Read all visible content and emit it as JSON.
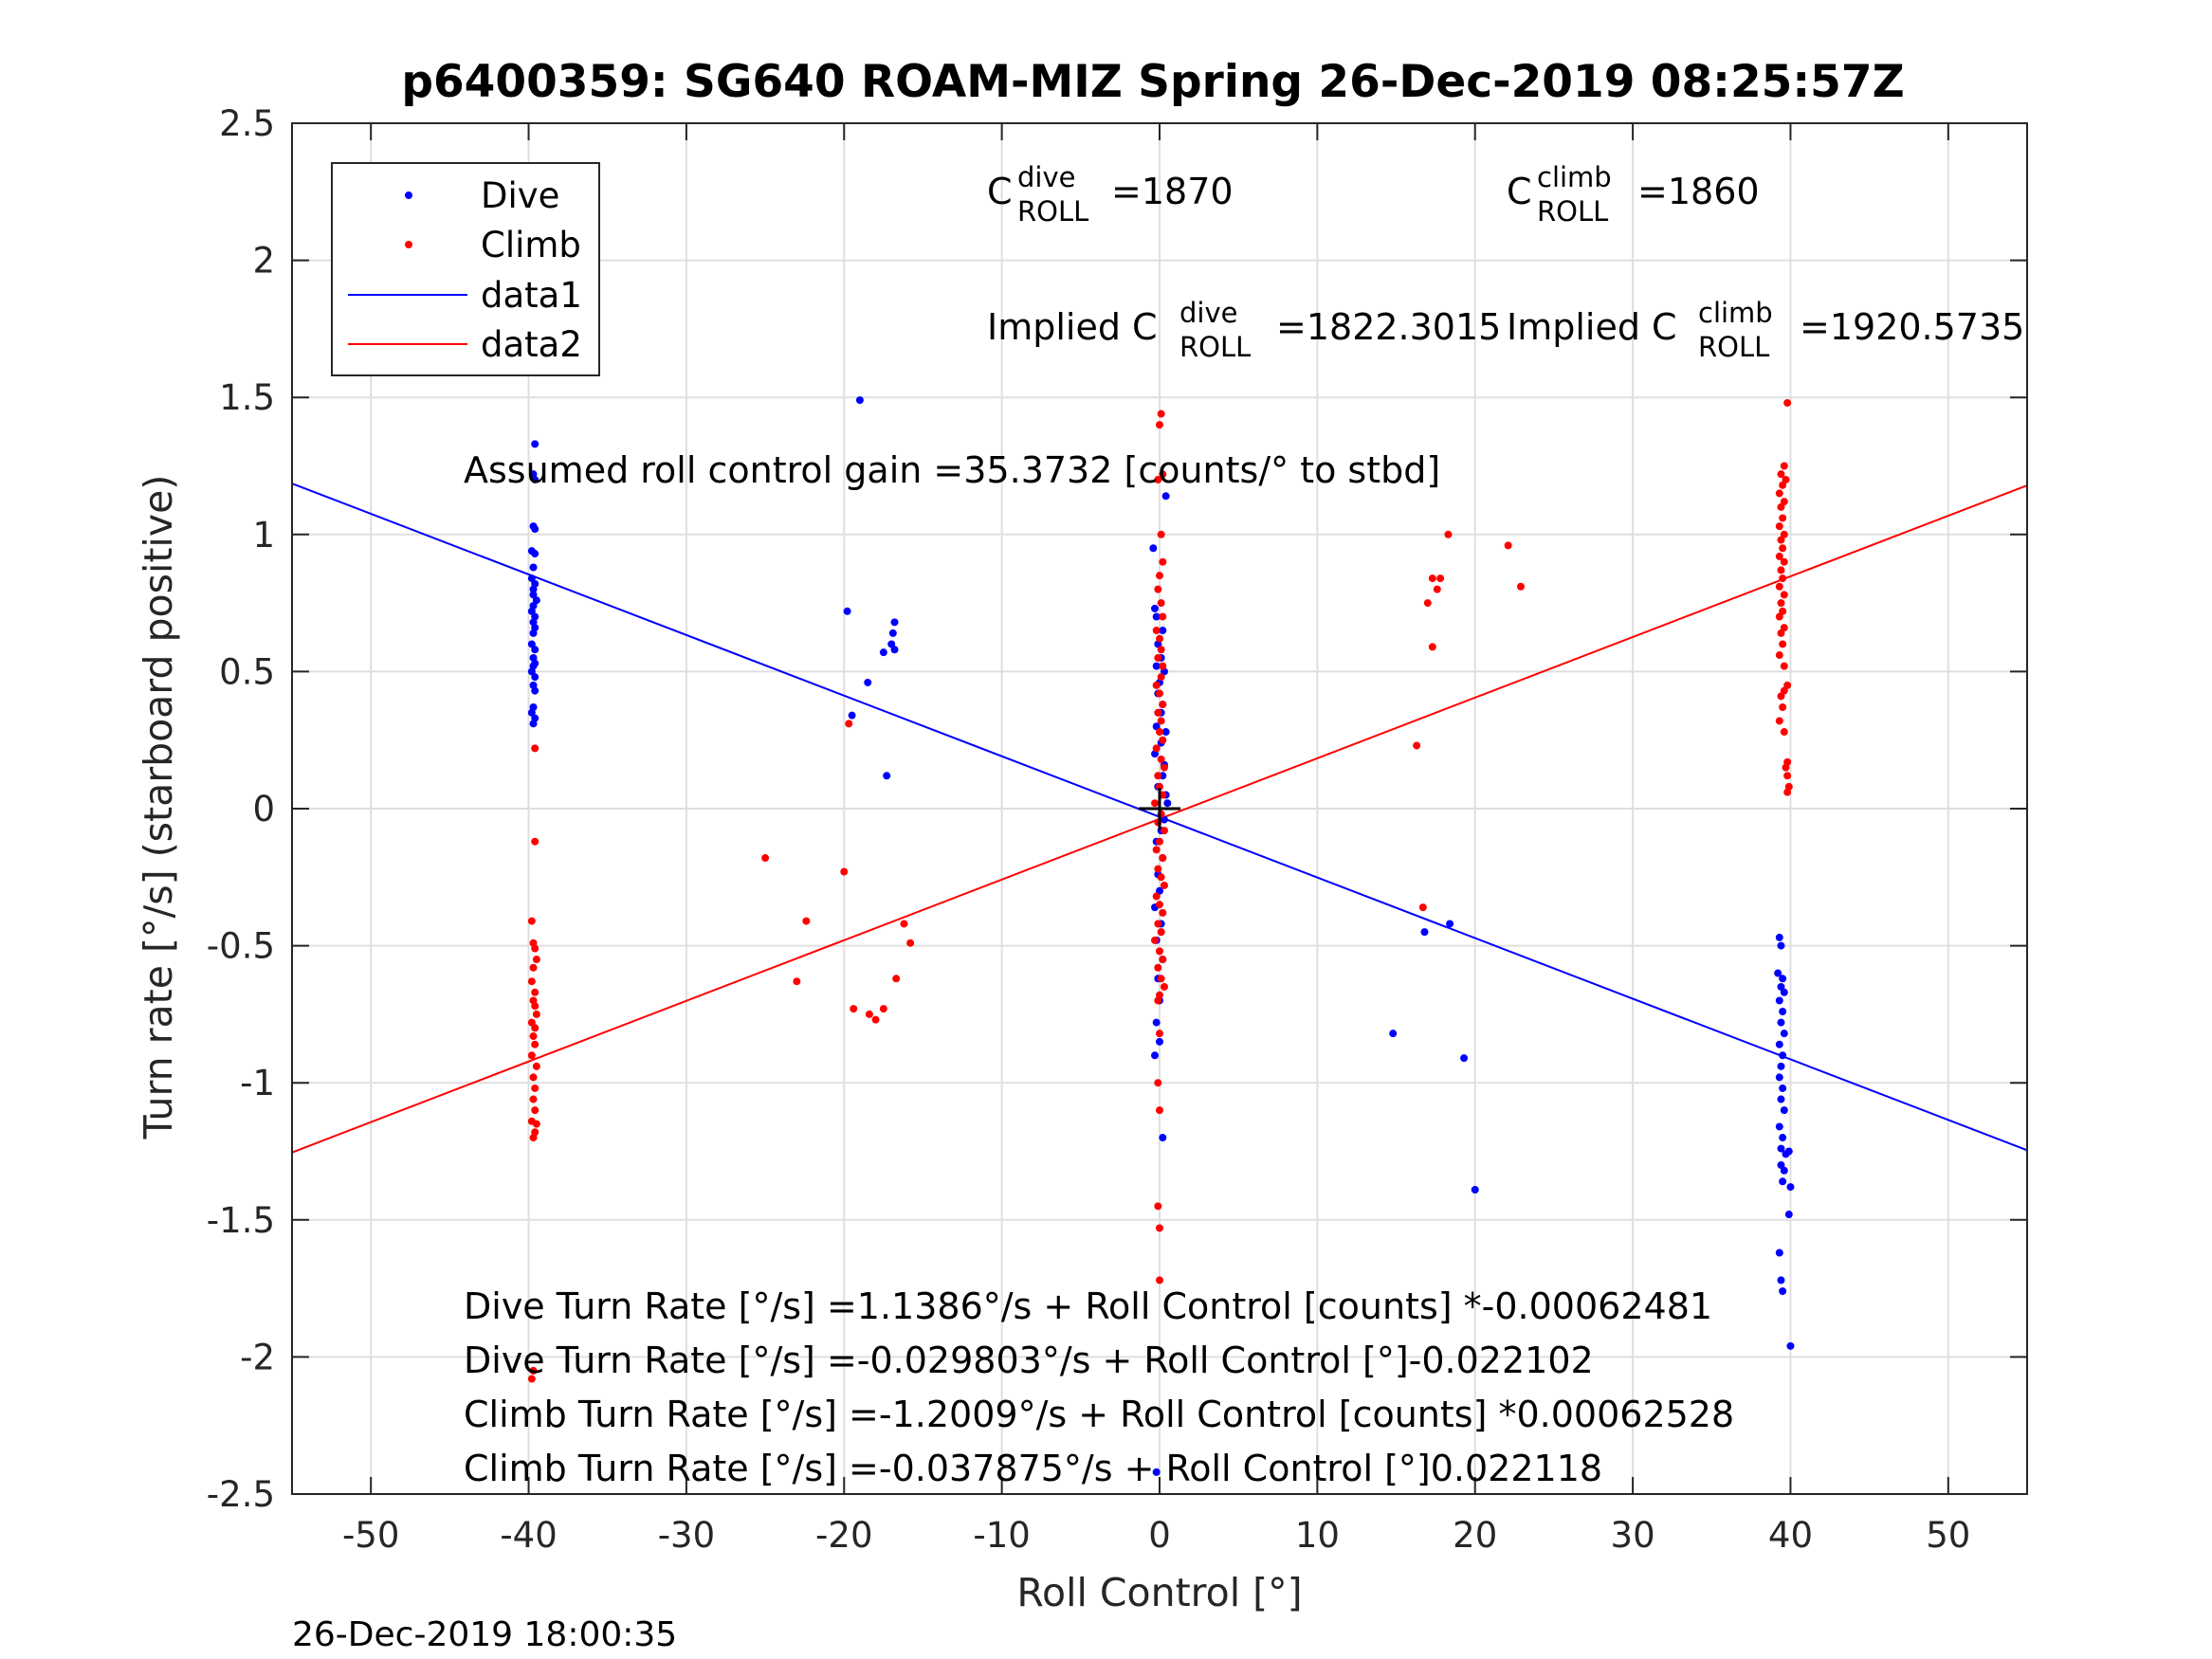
{
  "chart_data": {
    "type": "scatter",
    "title": "p6400359: SG640 ROAM-MIZ Spring 26-Dec-2019 08:25:57Z",
    "xlabel": "Roll Control [°]",
    "ylabel": "Turn rate [°/s] (starboard positive)",
    "xlim": [
      -55,
      55
    ],
    "ylim": [
      -2.5,
      2.5
    ],
    "grid": true,
    "x_ticks": [
      -50,
      -40,
      -30,
      -20,
      -10,
      0,
      10,
      20,
      30,
      40,
      50
    ],
    "x_tick_labels": [
      "-50",
      "-40",
      "-30",
      "-20",
      "-10",
      "0",
      "10",
      "20",
      "30",
      "40",
      "50"
    ],
    "y_ticks": [
      -2.5,
      -2,
      -1.5,
      -1,
      -0.5,
      0,
      0.5,
      1,
      1.5,
      2,
      2.5
    ],
    "y_tick_labels": [
      "-2.5",
      "-2",
      "-1.5",
      "-1",
      "-0.5",
      "0",
      "0.5",
      "1",
      "1.5",
      "2",
      "2.5"
    ],
    "legend": {
      "placement": "top-left",
      "entries": [
        {
          "label": "Dive",
          "kind": "marker",
          "color": "#0000ff"
        },
        {
          "label": "Climb",
          "kind": "marker",
          "color": "#ff0000"
        },
        {
          "label": "data1",
          "kind": "line",
          "color": "#0000ff"
        },
        {
          "label": "data2",
          "kind": "line",
          "color": "#ff0000"
        }
      ]
    },
    "series": [
      {
        "name": "Dive",
        "kind": "scatter",
        "color": "#0000ff",
        "points": [
          [
            -39.7,
            1.6
          ],
          [
            -39.6,
            1.33
          ],
          [
            -39.7,
            1.22
          ],
          [
            -39.6,
            1.2
          ],
          [
            -39.7,
            1.03
          ],
          [
            -39.6,
            1.02
          ],
          [
            -39.8,
            0.94
          ],
          [
            -39.6,
            0.93
          ],
          [
            -39.7,
            0.88
          ],
          [
            -39.8,
            0.84
          ],
          [
            -39.6,
            0.82
          ],
          [
            -39.7,
            0.8
          ],
          [
            -39.7,
            0.78
          ],
          [
            -39.5,
            0.76
          ],
          [
            -39.7,
            0.74
          ],
          [
            -39.8,
            0.72
          ],
          [
            -39.6,
            0.7
          ],
          [
            -39.7,
            0.68
          ],
          [
            -39.6,
            0.66
          ],
          [
            -39.7,
            0.64
          ],
          [
            -39.8,
            0.6
          ],
          [
            -39.6,
            0.58
          ],
          [
            -39.7,
            0.55
          ],
          [
            -39.6,
            0.53
          ],
          [
            -39.7,
            0.52
          ],
          [
            -39.8,
            0.5
          ],
          [
            -39.6,
            0.48
          ],
          [
            -39.7,
            0.45
          ],
          [
            -39.6,
            0.43
          ],
          [
            -39.7,
            0.37
          ],
          [
            -39.8,
            0.35
          ],
          [
            -39.6,
            0.33
          ],
          [
            -39.7,
            0.31
          ],
          [
            -19.8,
            0.72
          ],
          [
            -19.0,
            1.49
          ],
          [
            -17.5,
            0.57
          ],
          [
            -16.8,
            0.68
          ],
          [
            -16.9,
            0.64
          ],
          [
            -17.0,
            0.6
          ],
          [
            -16.8,
            0.58
          ],
          [
            -18.5,
            0.46
          ],
          [
            -19.5,
            0.34
          ],
          [
            -17.3,
            0.12
          ],
          [
            -0.4,
            0.95
          ],
          [
            -0.3,
            0.73
          ],
          [
            -0.2,
            0.7
          ],
          [
            0.2,
            0.65
          ],
          [
            -0.1,
            0.6
          ],
          [
            0.1,
            0.55
          ],
          [
            -0.2,
            0.52
          ],
          [
            0.3,
            0.5
          ],
          [
            0.0,
            0.46
          ],
          [
            -0.1,
            0.42
          ],
          [
            0.2,
            0.38
          ],
          [
            0.1,
            0.35
          ],
          [
            -0.2,
            0.3
          ],
          [
            0.4,
            0.28
          ],
          [
            0.1,
            0.24
          ],
          [
            -0.3,
            0.2
          ],
          [
            0.3,
            0.16
          ],
          [
            0.2,
            0.12
          ],
          [
            -0.1,
            0.08
          ],
          [
            0.4,
            0.05
          ],
          [
            0.5,
            0.02
          ],
          [
            0.3,
            -0.04
          ],
          [
            0.1,
            -0.08
          ],
          [
            -0.2,
            -0.12
          ],
          [
            0.2,
            -0.18
          ],
          [
            -0.1,
            -0.24
          ],
          [
            0.0,
            -0.3
          ],
          [
            -0.3,
            -0.36
          ],
          [
            0.1,
            -0.42
          ],
          [
            -0.2,
            -0.48
          ],
          [
            0.2,
            -0.55
          ],
          [
            -0.1,
            -0.62
          ],
          [
            0.0,
            -0.7
          ],
          [
            -0.2,
            -0.78
          ],
          [
            0.0,
            -0.85
          ],
          [
            -0.3,
            -0.9
          ],
          [
            0.2,
            -1.2
          ],
          [
            0.4,
            1.14
          ],
          [
            -0.2,
            -2.42
          ],
          [
            14.8,
            -0.82
          ],
          [
            16.8,
            -0.45
          ],
          [
            18.4,
            -0.42
          ],
          [
            19.3,
            -0.91
          ],
          [
            20.0,
            -1.39
          ],
          [
            39.3,
            -0.47
          ],
          [
            39.4,
            -0.5
          ],
          [
            39.2,
            -0.6
          ],
          [
            39.5,
            -0.62
          ],
          [
            39.4,
            -0.65
          ],
          [
            39.6,
            -0.67
          ],
          [
            39.3,
            -0.7
          ],
          [
            39.5,
            -0.74
          ],
          [
            39.4,
            -0.78
          ],
          [
            39.6,
            -0.82
          ],
          [
            39.3,
            -0.86
          ],
          [
            39.5,
            -0.9
          ],
          [
            39.4,
            -0.94
          ],
          [
            39.3,
            -0.98
          ],
          [
            39.5,
            -1.02
          ],
          [
            39.4,
            -1.06
          ],
          [
            39.6,
            -1.1
          ],
          [
            39.3,
            -1.16
          ],
          [
            39.5,
            -1.2
          ],
          [
            39.4,
            -1.24
          ],
          [
            39.7,
            -1.26
          ],
          [
            39.9,
            -1.25
          ],
          [
            39.4,
            -1.3
          ],
          [
            39.6,
            -1.32
          ],
          [
            39.5,
            -1.36
          ],
          [
            40.0,
            -1.38
          ],
          [
            39.9,
            -1.48
          ],
          [
            39.3,
            -1.62
          ],
          [
            39.4,
            -1.72
          ],
          [
            39.5,
            -1.76
          ],
          [
            40.0,
            -1.96
          ]
        ]
      },
      {
        "name": "Climb",
        "kind": "scatter",
        "color": "#ff0000",
        "points": [
          [
            -39.6,
            0.22
          ],
          [
            -39.6,
            -0.12
          ],
          [
            -39.8,
            -0.41
          ],
          [
            -39.7,
            -0.49
          ],
          [
            -39.6,
            -0.51
          ],
          [
            -39.5,
            -0.55
          ],
          [
            -39.7,
            -0.58
          ],
          [
            -39.8,
            -0.63
          ],
          [
            -39.6,
            -0.67
          ],
          [
            -39.7,
            -0.7
          ],
          [
            -39.6,
            -0.72
          ],
          [
            -39.5,
            -0.75
          ],
          [
            -39.8,
            -0.78
          ],
          [
            -39.6,
            -0.8
          ],
          [
            -39.7,
            -0.83
          ],
          [
            -39.6,
            -0.86
          ],
          [
            -39.8,
            -0.9
          ],
          [
            -39.5,
            -0.94
          ],
          [
            -39.7,
            -0.98
          ],
          [
            -39.6,
            -1.02
          ],
          [
            -39.7,
            -1.06
          ],
          [
            -39.6,
            -1.1
          ],
          [
            -39.8,
            -1.14
          ],
          [
            -39.6,
            -1.18
          ],
          [
            -39.7,
            -1.2
          ],
          [
            -39.5,
            -1.15
          ],
          [
            -39.7,
            -2.05
          ],
          [
            -39.8,
            -2.08
          ],
          [
            -25.0,
            -0.18
          ],
          [
            -22.4,
            -0.41
          ],
          [
            -23.0,
            -0.63
          ],
          [
            -20.0,
            -0.23
          ],
          [
            -19.7,
            0.31
          ],
          [
            -19.4,
            -0.73
          ],
          [
            -18.4,
            -0.75
          ],
          [
            -18.0,
            -0.77
          ],
          [
            -17.5,
            -0.73
          ],
          [
            -16.7,
            -0.62
          ],
          [
            -16.2,
            -0.42
          ],
          [
            -15.8,
            -0.49
          ],
          [
            0.1,
            1.44
          ],
          [
            0.0,
            1.4
          ],
          [
            0.2,
            1.22
          ],
          [
            -0.1,
            1.2
          ],
          [
            0.1,
            1.0
          ],
          [
            0.2,
            0.9
          ],
          [
            0.0,
            0.85
          ],
          [
            -0.1,
            0.8
          ],
          [
            0.1,
            0.75
          ],
          [
            0.2,
            0.7
          ],
          [
            -0.2,
            0.65
          ],
          [
            0.0,
            0.62
          ],
          [
            0.1,
            0.58
          ],
          [
            -0.1,
            0.55
          ],
          [
            0.2,
            0.52
          ],
          [
            0.1,
            0.48
          ],
          [
            -0.2,
            0.45
          ],
          [
            0.0,
            0.42
          ],
          [
            0.2,
            0.38
          ],
          [
            -0.1,
            0.35
          ],
          [
            0.1,
            0.32
          ],
          [
            0.0,
            0.28
          ],
          [
            0.2,
            0.25
          ],
          [
            -0.2,
            0.22
          ],
          [
            0.1,
            0.18
          ],
          [
            0.3,
            0.15
          ],
          [
            -0.1,
            0.12
          ],
          [
            0.0,
            0.08
          ],
          [
            0.2,
            0.05
          ],
          [
            -0.3,
            0.02
          ],
          [
            0.1,
            -0.02
          ],
          [
            -0.1,
            -0.05
          ],
          [
            0.3,
            -0.08
          ],
          [
            0.0,
            -0.12
          ],
          [
            -0.2,
            -0.15
          ],
          [
            0.2,
            -0.18
          ],
          [
            -0.1,
            -0.22
          ],
          [
            0.1,
            -0.25
          ],
          [
            0.3,
            -0.28
          ],
          [
            -0.2,
            -0.32
          ],
          [
            0.0,
            -0.35
          ],
          [
            0.2,
            -0.38
          ],
          [
            -0.1,
            -0.42
          ],
          [
            0.1,
            -0.45
          ],
          [
            -0.3,
            -0.48
          ],
          [
            0.0,
            -0.52
          ],
          [
            0.2,
            -0.55
          ],
          [
            -0.1,
            -0.58
          ],
          [
            0.1,
            -0.62
          ],
          [
            0.3,
            -0.65
          ],
          [
            0.0,
            -0.68
          ],
          [
            -0.1,
            -0.7
          ],
          [
            0.0,
            -0.82
          ],
          [
            -0.1,
            -1.0
          ],
          [
            0.0,
            -1.1
          ],
          [
            -0.1,
            -1.45
          ],
          [
            0.0,
            -1.53
          ],
          [
            0.0,
            -1.72
          ],
          [
            16.3,
            0.23
          ],
          [
            16.7,
            -0.36
          ],
          [
            17.0,
            0.75
          ],
          [
            17.3,
            0.59
          ],
          [
            17.3,
            0.84
          ],
          [
            17.6,
            0.8
          ],
          [
            17.8,
            0.84
          ],
          [
            18.3,
            1.0
          ],
          [
            22.1,
            0.96
          ],
          [
            22.9,
            0.81
          ],
          [
            39.8,
            1.48
          ],
          [
            39.6,
            1.25
          ],
          [
            39.4,
            1.22
          ],
          [
            39.7,
            1.2
          ],
          [
            39.5,
            1.18
          ],
          [
            39.3,
            1.15
          ],
          [
            39.6,
            1.12
          ],
          [
            39.4,
            1.1
          ],
          [
            39.5,
            1.06
          ],
          [
            39.3,
            1.03
          ],
          [
            39.6,
            1.0
          ],
          [
            39.4,
            0.98
          ],
          [
            39.5,
            0.95
          ],
          [
            39.3,
            0.92
          ],
          [
            39.6,
            0.9
          ],
          [
            39.4,
            0.87
          ],
          [
            39.5,
            0.84
          ],
          [
            39.3,
            0.81
          ],
          [
            39.6,
            0.78
          ],
          [
            39.4,
            0.75
          ],
          [
            39.5,
            0.72
          ],
          [
            39.3,
            0.7
          ],
          [
            39.6,
            0.66
          ],
          [
            39.4,
            0.64
          ],
          [
            39.5,
            0.6
          ],
          [
            39.3,
            0.56
          ],
          [
            39.6,
            0.52
          ],
          [
            39.8,
            0.45
          ],
          [
            39.6,
            0.43
          ],
          [
            39.4,
            0.41
          ],
          [
            39.5,
            0.37
          ],
          [
            39.3,
            0.32
          ],
          [
            39.6,
            0.28
          ],
          [
            39.8,
            0.17
          ],
          [
            39.7,
            0.15
          ],
          [
            39.8,
            0.12
          ],
          [
            39.9,
            0.08
          ],
          [
            39.8,
            0.06
          ]
        ]
      },
      {
        "name": "data1",
        "kind": "line",
        "color": "#0000ff",
        "x": [
          -55,
          55
        ],
        "y": [
          1.186,
          -1.246
        ]
      },
      {
        "name": "data2",
        "kind": "line",
        "color": "#ff0000",
        "x": [
          -55,
          55
        ],
        "y": [
          -1.254,
          1.179
        ]
      }
    ],
    "cross_marker": {
      "x": 0,
      "y": 0,
      "color": "#000000"
    },
    "annotations": {
      "c_roll_dive": {
        "base": "C",
        "sup": "dive",
        "sub": "ROLL",
        "value": "=1870"
      },
      "c_roll_climb": {
        "base": "C",
        "sup": "climb",
        "sub": "ROLL",
        "value": "=1860"
      },
      "implied_dive": {
        "base": "Implied C",
        "sup": "dive",
        "sub": "ROLL",
        "value": "=1822.3015"
      },
      "implied_climb": {
        "base": "Implied C",
        "sup": "climb",
        "sub": "ROLL",
        "value": "=1920.5735"
      },
      "gain": "Assumed roll control gain =35.3732 [counts/° to stbd]",
      "fit_lines": [
        "Dive Turn Rate [°/s] =1.1386°/s + Roll Control [counts] *-0.00062481",
        "Dive Turn Rate [°/s] =-0.029803°/s + Roll Control [°]-0.022102",
        "Climb Turn Rate [°/s] =-1.2009°/s + Roll Control [counts] *0.00062528",
        "Climb Turn Rate [°/s] =-0.037875°/s + Roll Control [°]0.022118"
      ]
    },
    "footer_timestamp": "26-Dec-2019 18:00:35"
  }
}
